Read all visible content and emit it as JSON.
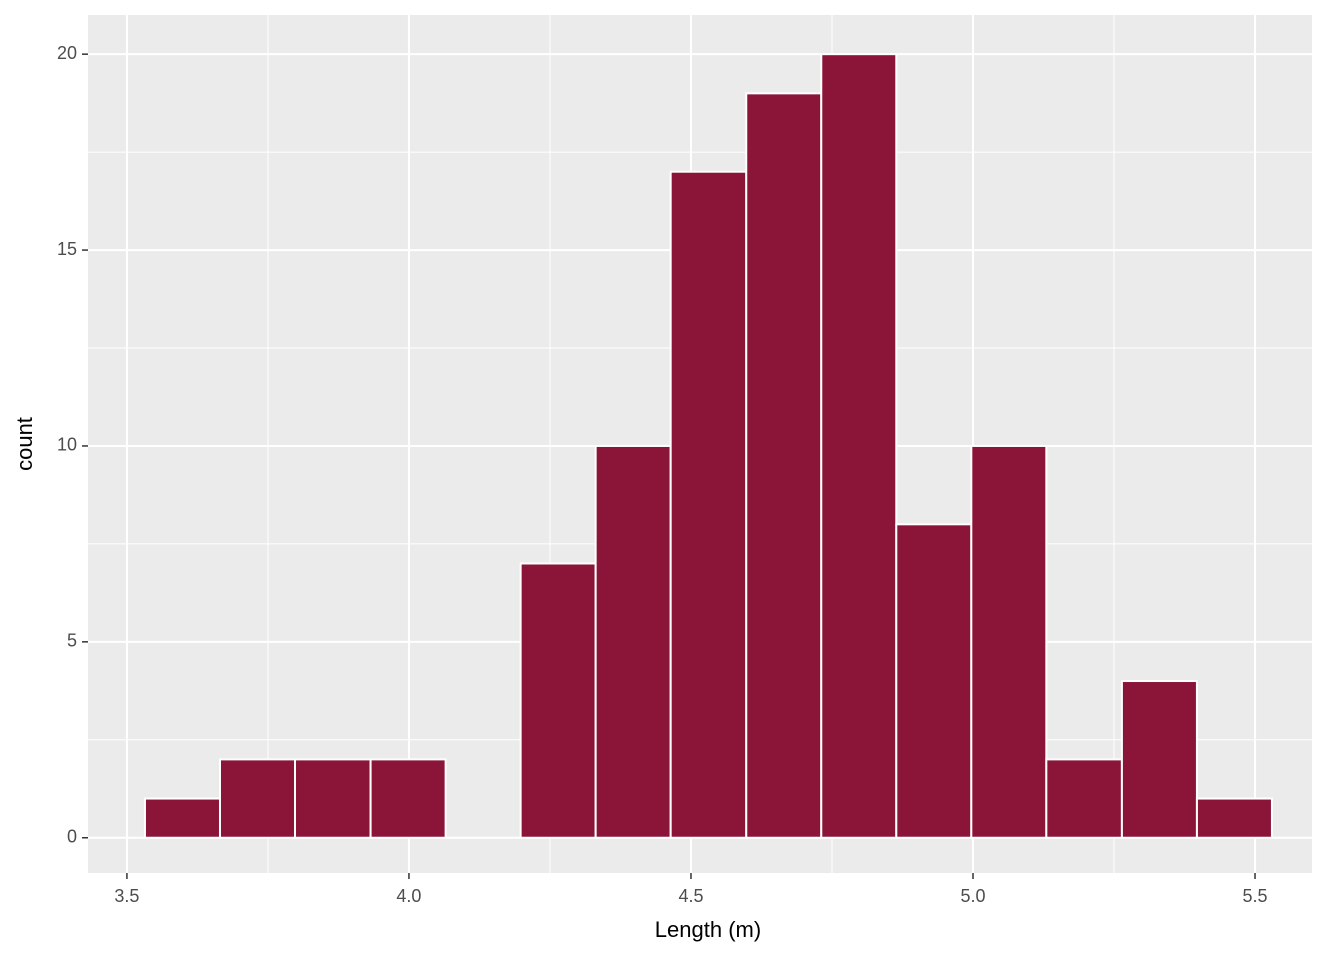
{
  "chart_data": {
    "type": "histogram",
    "x_label": "Length (m)",
    "y_label": "count",
    "bins": [
      3.532,
      3.665,
      3.798,
      3.932,
      4.065,
      4.198,
      4.331,
      4.464,
      4.598,
      4.731,
      4.864,
      4.997,
      5.13,
      5.264,
      5.397,
      5.53
    ],
    "counts": [
      1,
      2,
      2,
      2,
      0,
      7,
      10,
      17,
      19,
      20,
      8,
      10,
      2,
      4,
      1
    ],
    "color": "#8b1538",
    "xlim": [
      3.431,
      5.601
    ],
    "xticks": [
      {
        "value": 3.5,
        "label": "3.5"
      },
      {
        "value": 4.0,
        "label": "4.0"
      },
      {
        "value": 4.5,
        "label": "4.5"
      },
      {
        "value": 5.0,
        "label": "5.0"
      },
      {
        "value": 5.5,
        "label": "5.5"
      }
    ],
    "ylim": [
      -0.9,
      21
    ],
    "yticks": [
      0,
      5,
      10,
      15,
      20
    ],
    "grid": true
  }
}
